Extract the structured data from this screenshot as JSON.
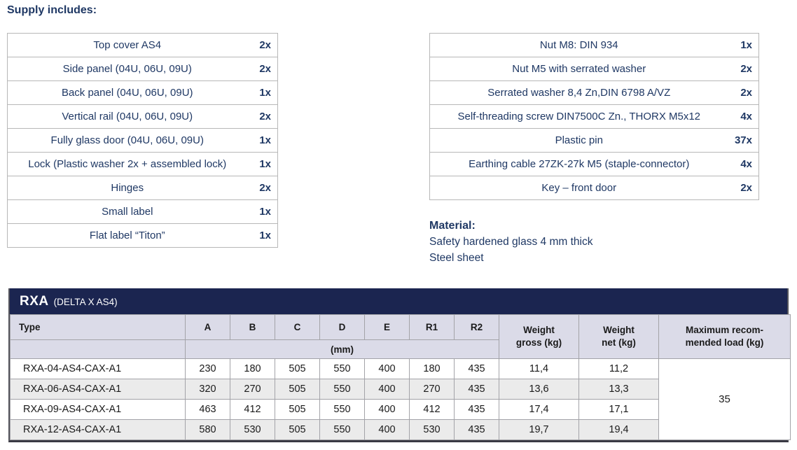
{
  "page": {
    "heading": "Supply includes:"
  },
  "colors": {
    "navy_text": "#1f3864",
    "navy_band": "#1b2550",
    "header_lavender": "#dbdbe8",
    "row_alt_grey": "#ebebeb",
    "grid_line": "#a3a3a8"
  },
  "supply_left": {
    "rows": [
      {
        "item": "Top cover AS4",
        "qty": "2x"
      },
      {
        "item": "Side panel (04U, 06U, 09U)",
        "qty": "2x"
      },
      {
        "item": "Back panel (04U, 06U, 09U)",
        "qty": "1x"
      },
      {
        "item": "Vertical rail (04U, 06U, 09U)",
        "qty": "2x"
      },
      {
        "item": "Fully glass door (04U, 06U, 09U)",
        "qty": "1x"
      },
      {
        "item": "Lock (Plastic washer 2x + assembled lock)",
        "qty": "1x"
      },
      {
        "item": "Hinges",
        "qty": "2x"
      },
      {
        "item": "Small label",
        "qty": "1x"
      },
      {
        "item": "Flat label “Titon”",
        "qty": "1x"
      }
    ]
  },
  "supply_right": {
    "rows": [
      {
        "item": "Nut M8: DIN 934",
        "qty": "1x"
      },
      {
        "item": "Nut M5 with serrated washer",
        "qty": "2x"
      },
      {
        "item": "Serrated washer 8,4 Zn,DIN 6798 A/VZ",
        "qty": "2x"
      },
      {
        "item": "Self-threading screw DIN7500C Zn., THORX M5x12",
        "qty": "4x"
      },
      {
        "item": "Plastic pin",
        "qty": "37x"
      },
      {
        "item": "Earthing cable 27ZK-27k M5 (staple-connector)",
        "qty": "4x"
      },
      {
        "item": "Key – front door",
        "qty": "2x"
      }
    ]
  },
  "material": {
    "heading": "Material:",
    "lines": [
      "Safety hardened glass 4 mm thick",
      "Steel sheet"
    ]
  },
  "spec_table": {
    "title": "RXA",
    "subtitle": "(DELTA X AS4)",
    "headers": {
      "type": "Type",
      "dims": [
        "A",
        "B",
        "C",
        "D",
        "E",
        "R1",
        "R2"
      ],
      "unit": "(mm)",
      "weight_gross": "Weight\ngross (kg)",
      "weight_net": "Weight\nnet (kg)",
      "max_load": "Maximum recom-\nmended load (kg)"
    },
    "rows": [
      {
        "type": "RXA-04-AS4-CAX-A1",
        "dims": [
          "230",
          "180",
          "505",
          "550",
          "400",
          "180",
          "435"
        ],
        "weight_gross": "11,4",
        "weight_net": "11,2"
      },
      {
        "type": "RXA-06-AS4-CAX-A1",
        "dims": [
          "320",
          "270",
          "505",
          "550",
          "400",
          "270",
          "435"
        ],
        "weight_gross": "13,6",
        "weight_net": "13,3"
      },
      {
        "type": "RXA-09-AS4-CAX-A1",
        "dims": [
          "463",
          "412",
          "505",
          "550",
          "400",
          "412",
          "435"
        ],
        "weight_gross": "17,4",
        "weight_net": "17,1"
      },
      {
        "type": "RXA-12-AS4-CAX-A1",
        "dims": [
          "580",
          "530",
          "505",
          "550",
          "400",
          "530",
          "435"
        ],
        "weight_gross": "19,7",
        "weight_net": "19,4"
      }
    ],
    "max_load_value": "35"
  }
}
